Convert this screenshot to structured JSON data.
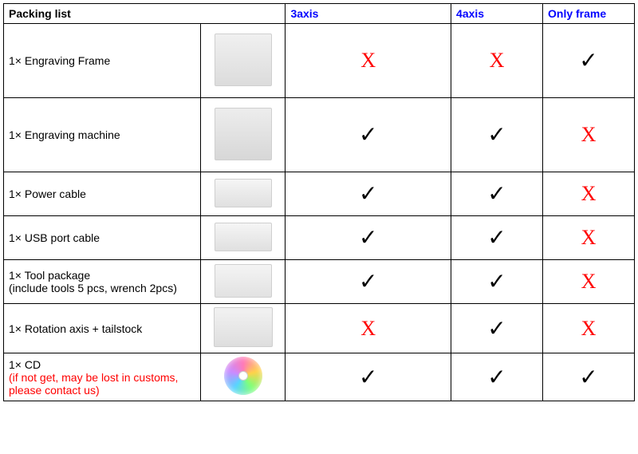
{
  "header": {
    "title": "Packing list",
    "col_3axis": "3axis",
    "col_4axis": "4axis",
    "col_onlyframe": "Only frame"
  },
  "marks": {
    "yes": "✓",
    "no": "X"
  },
  "styles": {
    "header_title_color": "#000000",
    "header_col_color": "#0000ff",
    "note_color": "#ff0000",
    "x_color": "#ff0000",
    "check_color": "#000000",
    "border_color": "#000000",
    "x_fontsize_pt": 20,
    "check_fontsize_pt": 22,
    "body_fontsize_pt": 11
  },
  "rows": [
    {
      "name": "1× Engraving Frame",
      "note": "",
      "image": "frame",
      "row_class": "row-tall",
      "axis3": "no",
      "axis4": "no",
      "onlyframe": "yes"
    },
    {
      "name": "1× Engraving machine",
      "note": "",
      "image": "machine",
      "row_class": "row-tall",
      "axis3": "yes",
      "axis4": "yes",
      "onlyframe": "no"
    },
    {
      "name": "1× Power cable",
      "note": "",
      "image": "cable",
      "row_class": "row-med",
      "axis3": "yes",
      "axis4": "yes",
      "onlyframe": "no"
    },
    {
      "name": "1× USB port cable",
      "note": "",
      "image": "cable",
      "row_class": "row-med",
      "axis3": "yes",
      "axis4": "yes",
      "onlyframe": "no"
    },
    {
      "name": "1× Tool package",
      "note": "(include tools 5 pcs, wrench 2pcs)",
      "note_color": "black",
      "image": "tools",
      "row_class": "row-med",
      "axis3": "yes",
      "axis4": "yes",
      "onlyframe": "no"
    },
    {
      "name": "1× Rotation axis + tailstock",
      "note": "",
      "image": "rotation",
      "row_class": "row-med",
      "axis3": "no",
      "axis4": "yes",
      "onlyframe": "no"
    },
    {
      "name": "1× CD",
      "note": "(if not get, may be lost in customs, please contact us)",
      "note_color": "red",
      "image": "cd",
      "row_class": "row-med",
      "axis3": "yes",
      "axis4": "yes",
      "onlyframe": "yes"
    }
  ]
}
